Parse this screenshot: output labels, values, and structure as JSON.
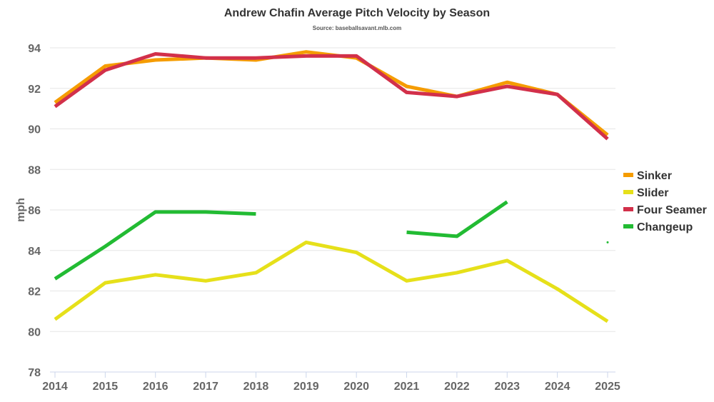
{
  "chart_data": {
    "type": "line",
    "title": "Andrew Chafin Average Pitch Velocity by Season",
    "subtitle": "Source: baseballsavant.mlb.com",
    "xlabel": "",
    "ylabel": "mph",
    "ylim": [
      78,
      94
    ],
    "yticks": [
      78,
      80,
      82,
      84,
      86,
      88,
      90,
      92,
      94
    ],
    "x": [
      2014,
      2015,
      2016,
      2017,
      2018,
      2019,
      2020,
      2021,
      2022,
      2023,
      2024,
      2025
    ],
    "grid": true,
    "legend_position": "right",
    "series": [
      {
        "name": "Sinker",
        "color": "#f59c00",
        "values": [
          91.3,
          93.1,
          93.4,
          93.5,
          93.4,
          93.8,
          93.5,
          92.1,
          91.6,
          92.3,
          91.7,
          89.7
        ]
      },
      {
        "name": "Slider",
        "color": "#e6e01a",
        "values": [
          80.6,
          82.4,
          82.8,
          82.5,
          82.9,
          84.4,
          83.9,
          82.5,
          82.9,
          83.5,
          82.1,
          80.5
        ]
      },
      {
        "name": "Four Seamer",
        "color": "#d2304a",
        "values": [
          91.1,
          92.9,
          93.7,
          93.5,
          93.5,
          93.6,
          93.6,
          91.8,
          91.6,
          92.1,
          91.7,
          89.5
        ]
      },
      {
        "name": "Changeup",
        "color": "#22bb33",
        "values": [
          82.6,
          84.2,
          85.9,
          85.9,
          85.8,
          null,
          null,
          84.9,
          84.7,
          86.4,
          null,
          84.4
        ]
      }
    ]
  }
}
